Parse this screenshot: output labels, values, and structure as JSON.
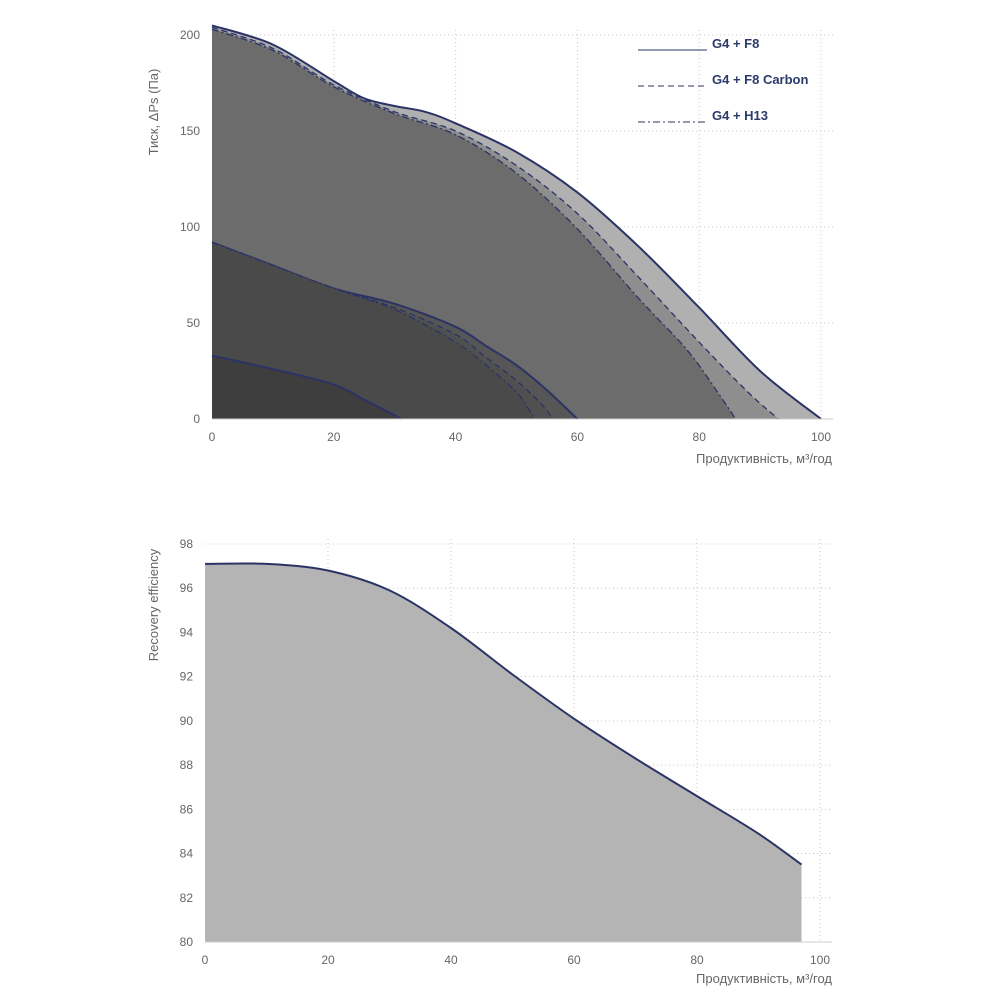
{
  "colors": {
    "curve_line": "#2b3366",
    "grid": "#c8c8c8",
    "tick_text": "#666666",
    "legend_text": "#2c3a6b",
    "efficiency_fill": "#b4b4b4"
  },
  "chart_data": [
    {
      "type": "area",
      "ylabel": "Тиск, ΔPs (Па)",
      "xlabel": "Продуктивність, м³/год",
      "xlim": [
        0,
        100
      ],
      "ylim": [
        0,
        200
      ],
      "x_ticks": [
        "0",
        "20",
        "40",
        "60",
        "80",
        "100"
      ],
      "y_ticks": [
        "0",
        "50",
        "100",
        "150",
        "200"
      ],
      "grid": true,
      "legend_position": "top-right",
      "legend": [
        {
          "label": "G4 + F8",
          "style": "solid",
          "marker": "__________"
        },
        {
          "label": "G4 + F8 Carbon",
          "style": "dashed",
          "marker": "_ _ _ _ _ _"
        },
        {
          "label": "G4 + H13",
          "style": "dash-dot",
          "marker": "_ . _ . _ . _"
        }
      ],
      "series": [
        {
          "speed": "max",
          "filter": "G4 + F8",
          "fill": "#b0b0b0",
          "line_style": "solid",
          "points": [
            [
              0,
              205
            ],
            [
              10,
              195
            ],
            [
              20,
              176
            ],
            [
              25,
              167
            ],
            [
              30,
              163
            ],
            [
              35,
              160
            ],
            [
              40,
              154
            ],
            [
              50,
              139
            ],
            [
              60,
              118
            ],
            [
              70,
              90
            ],
            [
              80,
              58
            ],
            [
              90,
              25
            ],
            [
              100,
              0
            ]
          ]
        },
        {
          "speed": "max",
          "filter": "G4 + F8 Carbon",
          "fill": "#8e8e8e",
          "line_style": "dashed",
          "points": [
            [
              0,
              204
            ],
            [
              10,
              193
            ],
            [
              20,
              174
            ],
            [
              30,
              160
            ],
            [
              40,
              150
            ],
            [
              50,
              132
            ],
            [
              60,
              107
            ],
            [
              70,
              74
            ],
            [
              80,
              40
            ],
            [
              88,
              14
            ],
            [
              93,
              0
            ]
          ]
        },
        {
          "speed": "max",
          "filter": "G4 + H13",
          "fill": "#6c6c6c",
          "line_style": "dash-dot",
          "points": [
            [
              0,
              203
            ],
            [
              10,
              192
            ],
            [
              20,
              173
            ],
            [
              30,
              159
            ],
            [
              40,
              148
            ],
            [
              50,
              128
            ],
            [
              60,
              99
            ],
            [
              70,
              63
            ],
            [
              78,
              36
            ],
            [
              83,
              14
            ],
            [
              86,
              0
            ]
          ]
        },
        {
          "speed": "mid",
          "filter": "G4 + F8",
          "fill": "#565656",
          "line_style": "solid",
          "points": [
            [
              0,
              92
            ],
            [
              10,
              80
            ],
            [
              20,
              68
            ],
            [
              30,
              60
            ],
            [
              40,
              48
            ],
            [
              45,
              38
            ],
            [
              50,
              28
            ],
            [
              55,
              15
            ],
            [
              60,
              0
            ]
          ]
        },
        {
          "speed": "mid",
          "filter": "G4 + F8 Carbon",
          "fill": "#505050",
          "line_style": "dashed",
          "points": [
            [
              0,
              92
            ],
            [
              10,
              80
            ],
            [
              20,
              68
            ],
            [
              30,
              58
            ],
            [
              40,
              44
            ],
            [
              45,
              32
            ],
            [
              50,
              20
            ],
            [
              54,
              8
            ],
            [
              56,
              0
            ]
          ]
        },
        {
          "speed": "mid",
          "filter": "G4 + H13",
          "fill": "#4a4a4a",
          "line_style": "dash-dot",
          "points": [
            [
              0,
              92
            ],
            [
              10,
              80
            ],
            [
              20,
              68
            ],
            [
              30,
              57
            ],
            [
              40,
              40
            ],
            [
              45,
              28
            ],
            [
              50,
              14
            ],
            [
              52,
              5
            ],
            [
              53,
              0
            ]
          ]
        },
        {
          "speed": "min",
          "filter": "G4 + F8",
          "fill": "#3e3e3e",
          "line_style": "solid",
          "points": [
            [
              0,
              33
            ],
            [
              10,
              26
            ],
            [
              20,
              18
            ],
            [
              25,
              10
            ],
            [
              30,
              2
            ],
            [
              31,
              0
            ]
          ]
        }
      ]
    },
    {
      "type": "area",
      "ylabel": "Recovery efficiency",
      "xlabel": "Продуктивність, м³/год",
      "xlim": [
        0,
        100
      ],
      "ylim": [
        80,
        98
      ],
      "x_ticks": [
        "0",
        "20",
        "40",
        "60",
        "80",
        "100"
      ],
      "y_ticks": [
        "80",
        "82",
        "84",
        "86",
        "88",
        "90",
        "92",
        "94",
        "96",
        "98"
      ],
      "grid": true,
      "series": [
        {
          "fill": "#b4b4b4",
          "x": [
            0,
            10,
            20,
            30,
            40,
            50,
            60,
            70,
            80,
            90,
            97
          ],
          "y": [
            97.1,
            97.1,
            96.8,
            95.9,
            94.2,
            92.1,
            90.1,
            88.3,
            86.6,
            84.9,
            83.5
          ]
        }
      ]
    }
  ]
}
